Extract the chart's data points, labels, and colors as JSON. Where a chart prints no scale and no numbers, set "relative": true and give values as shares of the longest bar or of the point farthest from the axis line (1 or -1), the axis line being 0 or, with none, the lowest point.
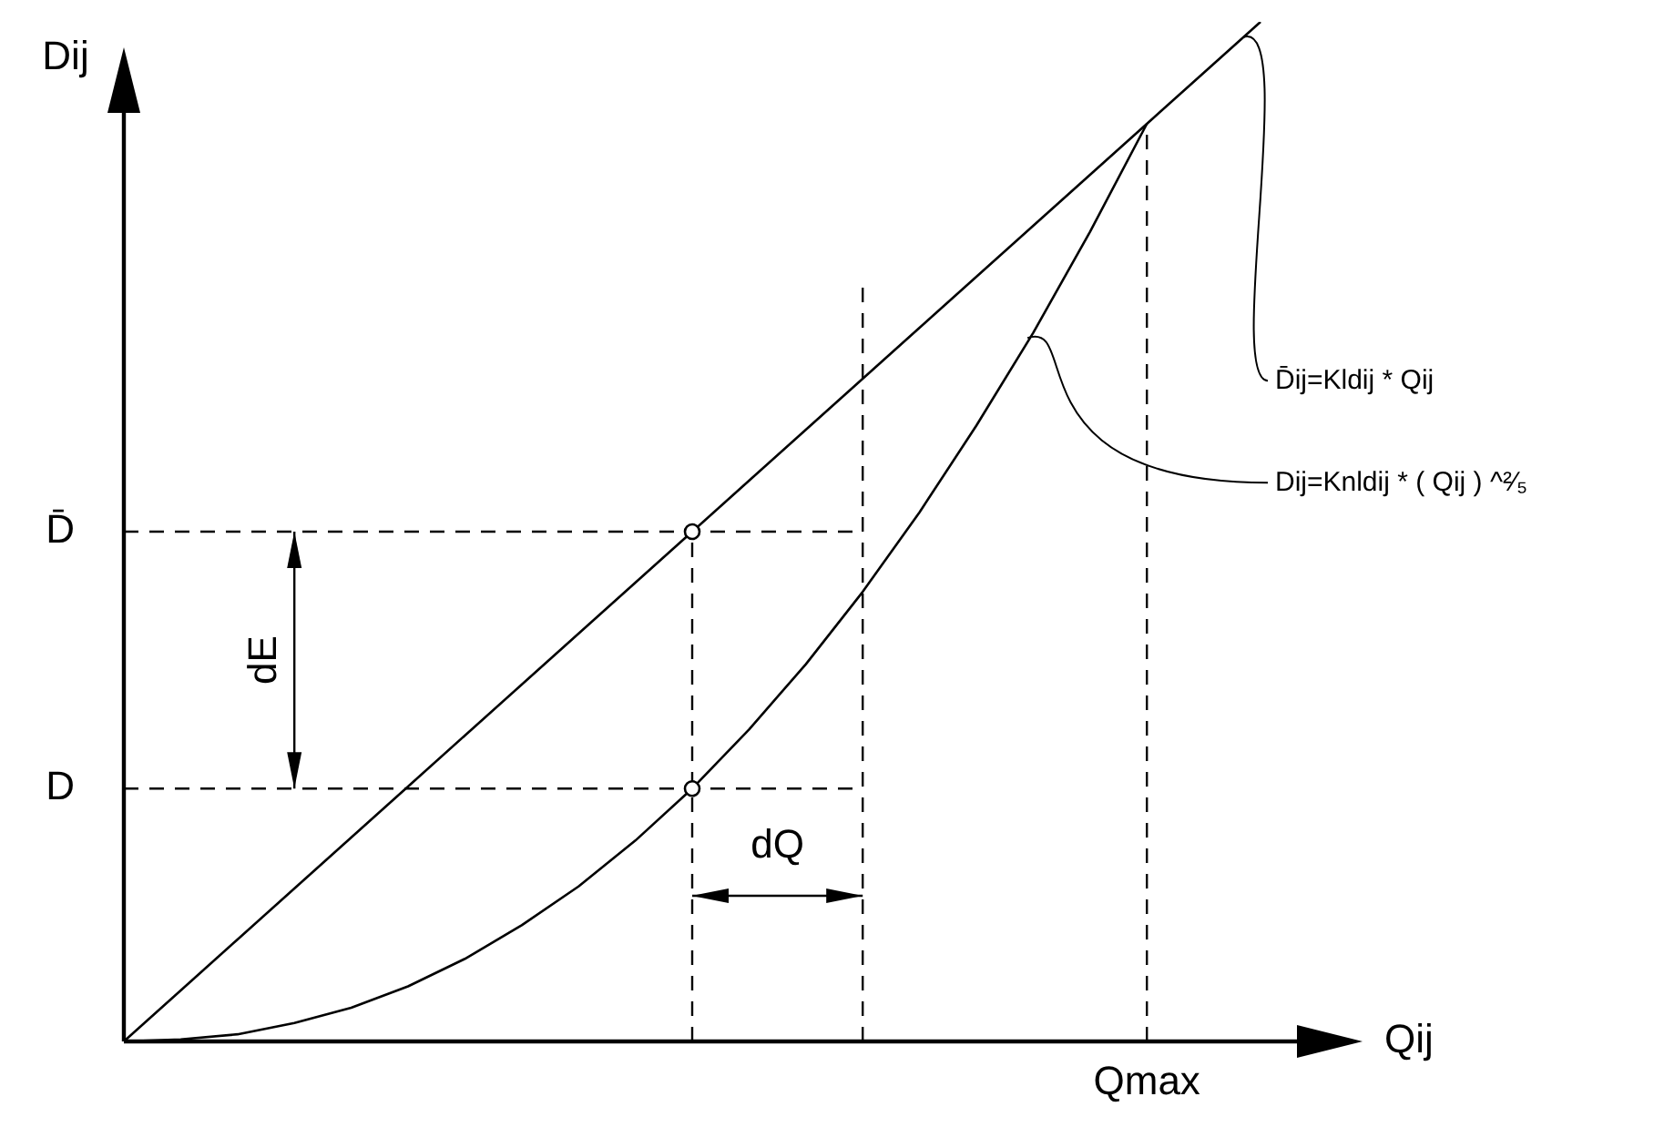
{
  "chart_data": {
    "type": "line",
    "relative": true,
    "xlabel": "Qij",
    "ylabel": "Dij",
    "marker": "none",
    "line_style": "solid",
    "categories": [
      null,
      null,
      null,
      null,
      null,
      null,
      null,
      null,
      null,
      null,
      null,
      null,
      null,
      null,
      null,
      null,
      null,
      null,
      null,
      null,
      null
    ],
    "series": [
      {
        "name": "D̄ij=Kldij * Qij",
        "color": "#000000",
        "values": [
          0,
          0.05,
          0.1,
          0.15,
          0.2,
          0.25,
          0.3,
          0.35,
          0.4,
          0.45,
          0.5,
          0.55,
          0.6,
          0.65,
          0.7,
          0.75,
          0.8,
          0.85,
          0.9,
          0.95,
          1.0
        ]
      },
      {
        "name": "Dij=Knldij * ( Qij ) ^²⁄₅",
        "color": "#000000",
        "values": [
          0,
          0.002,
          0.007,
          0.018,
          0.033,
          0.054,
          0.081,
          0.114,
          0.152,
          0.197,
          0.248,
          0.306,
          0.37,
          0.441,
          0.519,
          0.604,
          0.695,
          0.794,
          0.9,
          null,
          null
        ]
      }
    ],
    "ref_lines": [
      {
        "axis": "y",
        "value": 0.5,
        "label": "D̄",
        "line_style": "dashed"
      },
      {
        "axis": "y",
        "value": 0.248,
        "label": "D",
        "line_style": "dashed"
      }
    ],
    "annotations": [
      "dE",
      "dQ",
      "Qmax"
    ]
  }
}
